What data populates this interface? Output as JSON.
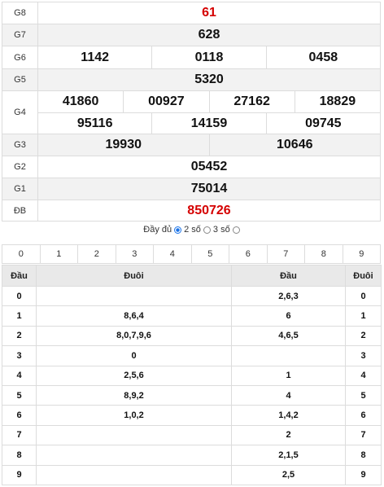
{
  "prizes": {
    "g8": {
      "label": "G8",
      "values": [
        "61"
      ]
    },
    "g7": {
      "label": "G7",
      "values": [
        "628"
      ]
    },
    "g6": {
      "label": "G6",
      "values": [
        "1142",
        "0118",
        "0458"
      ]
    },
    "g5": {
      "label": "G5",
      "values": [
        "5320"
      ]
    },
    "g4": {
      "label": "G4",
      "row1": [
        "41860",
        "00927",
        "27162",
        "18829"
      ],
      "row2": [
        "95116",
        "14159",
        "09745"
      ]
    },
    "g3": {
      "label": "G3",
      "values": [
        "19930",
        "10646"
      ]
    },
    "g2": {
      "label": "G2",
      "values": [
        "05452"
      ]
    },
    "g1": {
      "label": "G1",
      "values": [
        "75014"
      ]
    },
    "db": {
      "label": "ĐB",
      "values": [
        "850726"
      ]
    }
  },
  "options": {
    "full": "Đầy đủ",
    "two": "2 số",
    "three": "3 số",
    "selected": "two"
  },
  "digits": [
    "0",
    "1",
    "2",
    "3",
    "4",
    "5",
    "6",
    "7",
    "8",
    "9"
  ],
  "loto": {
    "headers": [
      "Đầu",
      "Đuôi",
      "Đầu",
      "Đuôi"
    ],
    "rows": [
      [
        "0",
        "",
        "2,6,3",
        "0"
      ],
      [
        "1",
        "8,6,4",
        "6",
        "1"
      ],
      [
        "2",
        "8,0,7,9,6",
        "4,6,5",
        "2"
      ],
      [
        "3",
        "0",
        "",
        "3"
      ],
      [
        "4",
        "2,5,6",
        "1",
        "4"
      ],
      [
        "5",
        "8,9,2",
        "4",
        "5"
      ],
      [
        "6",
        "1,0,2",
        "1,4,2",
        "6"
      ],
      [
        "7",
        "",
        "2",
        "7"
      ],
      [
        "8",
        "",
        "2,1,5",
        "8"
      ],
      [
        "9",
        "",
        "2,5",
        "9"
      ]
    ]
  },
  "colors": {
    "highlight": "#d50000",
    "radio": "#1a73e8"
  }
}
